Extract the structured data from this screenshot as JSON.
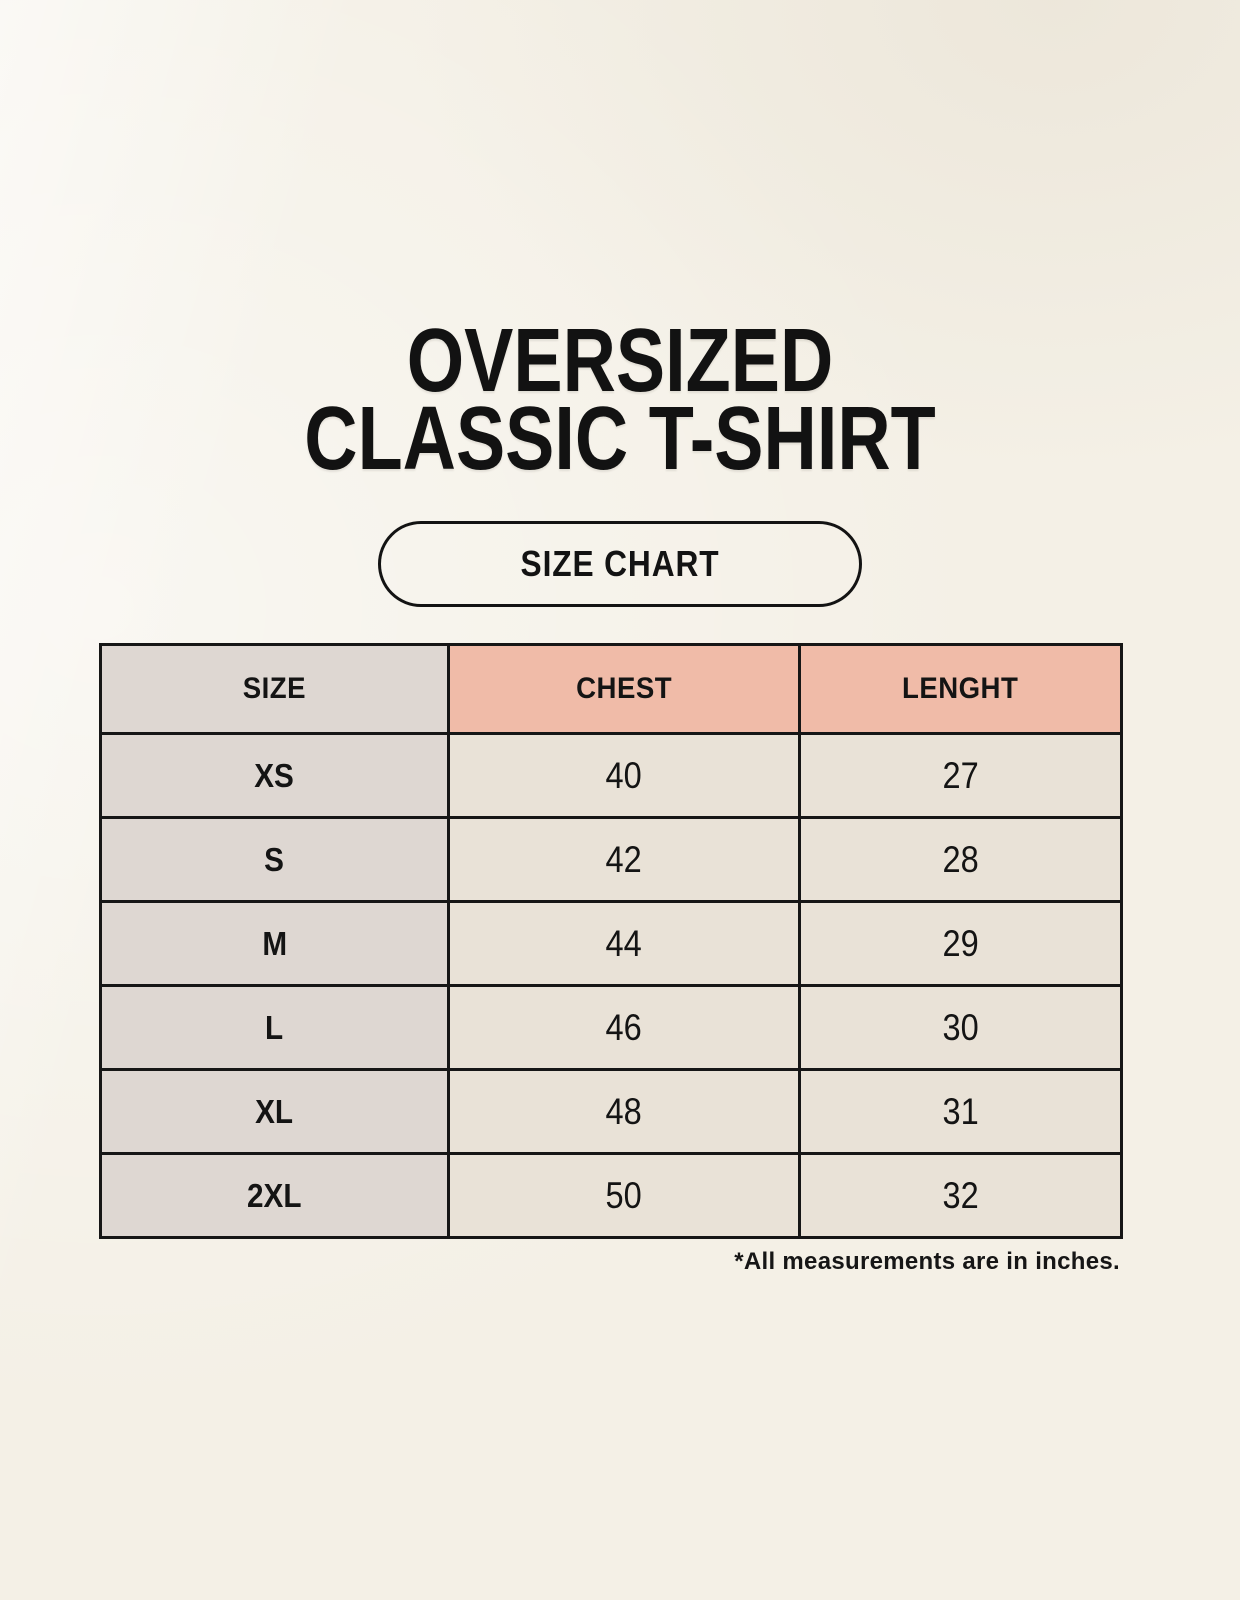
{
  "poster": {
    "title_line1": "OVERSIZED",
    "title_line2": "CLASSIC T-SHIRT",
    "badge_label": "SIZE CHART",
    "footnote": "*All measurements are in inches."
  },
  "table": {
    "columns": [
      "SIZE",
      "CHEST",
      "LENGHT"
    ],
    "rows": [
      {
        "size": "XS",
        "chest": "40",
        "length": "27"
      },
      {
        "size": "S",
        "chest": "42",
        "length": "28"
      },
      {
        "size": "M",
        "chest": "44",
        "length": "29"
      },
      {
        "size": "L",
        "chest": "46",
        "length": "30"
      },
      {
        "size": "XL",
        "chest": "48",
        "length": "31"
      },
      {
        "size": "2XL",
        "chest": "50",
        "length": "32"
      }
    ]
  },
  "colors": {
    "background": "#f4f0e6",
    "header_pink": "#f0bba8",
    "cell_gray": "#ded7d2",
    "cell_beige": "#e9e2d7",
    "border_black": "#161616",
    "text_black": "#141414"
  },
  "chart_data": {
    "type": "table",
    "title": "OVERSIZED CLASSIC T-SHIRT",
    "subtitle": "SIZE CHART",
    "columns": [
      "SIZE",
      "CHEST",
      "LENGHT"
    ],
    "categories": [
      "XS",
      "S",
      "M",
      "L",
      "XL",
      "2XL"
    ],
    "series": [
      {
        "name": "CHEST",
        "values": [
          40,
          42,
          44,
          46,
          48,
          50
        ]
      },
      {
        "name": "LENGHT",
        "values": [
          27,
          28,
          29,
          30,
          31,
          32
        ]
      }
    ],
    "note": "*All measurements are in inches.",
    "units": "inches",
    "layout_hints": {
      "first_column_background": "gray",
      "measure_header_background": "pink",
      "grid": "solid-black-borders"
    }
  }
}
